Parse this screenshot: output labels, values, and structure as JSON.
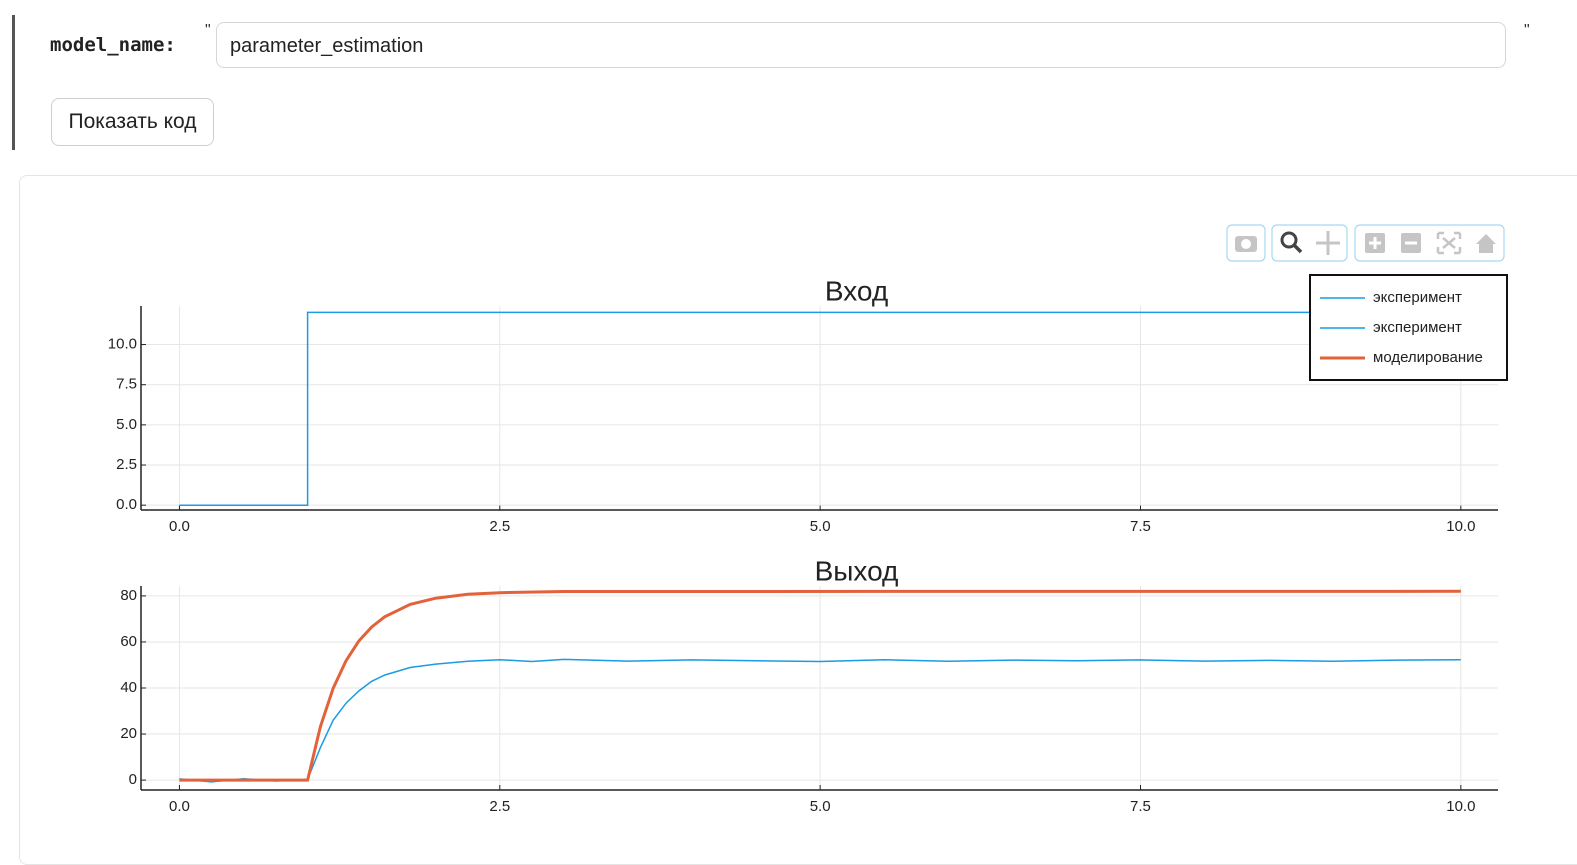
{
  "form": {
    "label": "model_name:",
    "quote_open": "\"",
    "value": "parameter_estimation",
    "quote_close": "\"",
    "button": "Показать код"
  },
  "chart_data": [
    {
      "type": "line",
      "title": "Вход",
      "grid": true,
      "legend": "top-right",
      "xlim": [
        -0.3,
        10.29
      ],
      "ylim": [
        -0.3,
        12.4
      ],
      "xticks": [
        {
          "value": 0,
          "label": "0.0"
        },
        {
          "value": 2.5,
          "label": "2.5"
        },
        {
          "value": 5,
          "label": "5.0"
        },
        {
          "value": 7.5,
          "label": "7.5"
        },
        {
          "value": 10,
          "label": "10.0"
        }
      ],
      "yticks": [
        {
          "value": 0,
          "label": "0.0"
        },
        {
          "value": 2.5,
          "label": "2.5"
        },
        {
          "value": 5,
          "label": "5.0"
        },
        {
          "value": 7.5,
          "label": "7.5"
        },
        {
          "value": 10,
          "label": "10.0"
        }
      ],
      "series": [
        {
          "name": "эксперимент",
          "color": "#1a9be3",
          "width": 1.5,
          "x": [
            0,
            1,
            1,
            10
          ],
          "values": [
            0,
            0,
            12,
            12
          ]
        }
      ]
    },
    {
      "type": "line",
      "title": "Выход",
      "grid": true,
      "xlim": [
        -0.3,
        10.29
      ],
      "ylim": [
        -4.3,
        84.3
      ],
      "xticks": [
        {
          "value": 0,
          "label": "0.0"
        },
        {
          "value": 2.5,
          "label": "2.5"
        },
        {
          "value": 5,
          "label": "5.0"
        },
        {
          "value": 7.5,
          "label": "7.5"
        },
        {
          "value": 10,
          "label": "10.0"
        }
      ],
      "yticks": [
        0,
        20,
        40,
        60,
        80
      ],
      "series": [
        {
          "name": "эксперимент",
          "color": "#1a9be3",
          "width": 1.5,
          "x": [
            0,
            0.25,
            0.5,
            0.75,
            1.0,
            1.1,
            1.2,
            1.3,
            1.4,
            1.5,
            1.6,
            1.8,
            2.0,
            2.25,
            2.5,
            2.75,
            3,
            3.5,
            4,
            4.5,
            5,
            5.5,
            6,
            6.5,
            7,
            7.5,
            8,
            8.5,
            9,
            9.5,
            10
          ],
          "values": [
            0.5,
            -0.8,
            0.6,
            -0.4,
            0.3,
            14.1,
            26.0,
            33.4,
            38.7,
            42.9,
            45.6,
            48.9,
            50.4,
            51.6,
            52.3,
            51.5,
            52.4,
            51.7,
            52.2,
            51.8,
            51.5,
            52.3,
            51.6,
            52.1,
            51.8,
            52.2,
            51.7,
            52.0,
            51.6,
            52.1,
            52.3
          ]
        },
        {
          "name": "моделирование",
          "color": "#e2623a",
          "width": 3,
          "x": [
            0,
            1.0,
            1.1,
            1.2,
            1.3,
            1.4,
            1.5,
            1.6,
            1.8,
            2.0,
            2.25,
            2.5,
            3,
            10
          ],
          "values": [
            0,
            0,
            23.2,
            39.9,
            51.8,
            60.4,
            66.5,
            70.9,
            76.3,
            79.0,
            80.7,
            81.4,
            81.9,
            82
          ]
        }
      ]
    }
  ]
}
